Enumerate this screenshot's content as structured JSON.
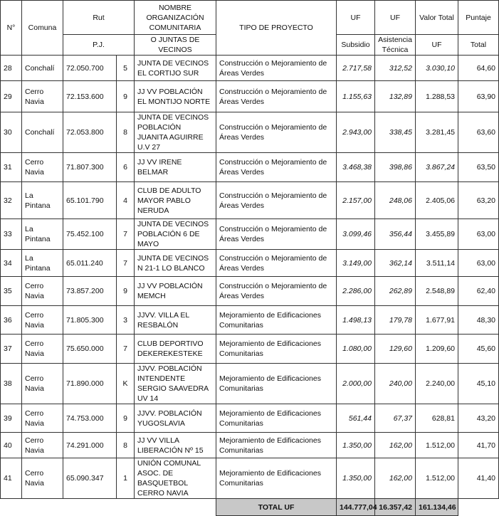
{
  "table": {
    "header": {
      "n": "N°",
      "comuna": "Comuna",
      "rut": "Rut",
      "nombre": "NOMBRE ORGANIZACIÓN COMUNITARIA",
      "tipo": "TIPO DE PROYECTO",
      "uf1": "UF",
      "uf2": "UF",
      "valor": "Valor Total",
      "puntaje": "Puntaje",
      "pj": "P.J.",
      "juntas": "O JUNTAS DE VECINOS",
      "subsidio": "Subsidio",
      "asistencia": "Asistencia Técnica",
      "uf3": "UF",
      "total": "Total"
    },
    "rows": [
      [
        "28",
        "Conchalí",
        "72.050.700",
        "5",
        "JUNTA DE VECINOS EL CORTIJO SUR",
        "Construcción o Mejoramiento de Áreas Verdes",
        "2.717,58",
        "312,52",
        "3.030,10",
        "64,60"
      ],
      [
        "29",
        "Cerro Navia",
        "72.153.600",
        "9",
        "JJ VV POBLACIÓN EL MONTIJO NORTE",
        "Construcción o Mejoramiento de Áreas Verdes",
        "1.155,63",
        "132,89",
        "1.288,53",
        "63,90"
      ],
      [
        "30",
        "Conchalí",
        "72.053.800",
        "8",
        "JUNTA DE VECINOS POBLACIÓN JUANITA AGUIRRE U.V 27",
        "Construcción o Mejoramiento de Áreas Verdes",
        "2.943,00",
        "338,45",
        "3.281,45",
        "63,60"
      ],
      [
        "31",
        "Cerro Navia",
        "71.807.300",
        "6",
        "JJ VV IRENE BELMAR",
        "Construcción o Mejoramiento de Áreas Verdes",
        "3.468,38",
        "398,86",
        "3.867,24",
        "63,50"
      ],
      [
        "32",
        "La Pintana",
        "65.101.790",
        "4",
        "CLUB DE ADULTO MAYOR PABLO NERUDA",
        "Construcción o Mejoramiento de Áreas Verdes",
        "2.157,00",
        "248,06",
        "2.405,06",
        "63,20"
      ],
      [
        "33",
        "La Pintana",
        "75.452.100",
        "7",
        "JUNTA DE VECINOS POBLACIÓN 6 DE MAYO",
        "Construcción o Mejoramiento de Áreas Verdes",
        "3.099,46",
        "356,44",
        "3.455,89",
        "63,00"
      ],
      [
        "34",
        "La Pintana",
        "65.011.240",
        "7",
        "JUNTA DE VECINOS N 21-1 LO BLANCO",
        "Construcción o Mejoramiento de Áreas Verdes",
        "3.149,00",
        "362,14",
        "3.511,14",
        "63,00"
      ],
      [
        "35",
        "Cerro Navia",
        "73.857.200",
        "9",
        "JJ VV POBLACIÓN MEMCH",
        "Construcción o Mejoramiento de Áreas Verdes",
        "2.286,00",
        "262,89",
        "2.548,89",
        "62,40"
      ],
      [
        "36",
        "Cerro Navia",
        "71.805.300",
        "3",
        "JJVV. VILLA EL RESBALÓN",
        "Mejoramiento de Edificaciones Comunitarias",
        "1.498,13",
        "179,78",
        "1.677,91",
        "48,30"
      ],
      [
        "37",
        "Cerro Navia",
        "75.650.000",
        "7",
        "CLUB DEPORTIVO DEKEREKESTEKE",
        "Mejoramiento de Edificaciones Comunitarias",
        "1.080,00",
        "129,60",
        "1.209,60",
        "45,60"
      ],
      [
        "38",
        "Cerro Navia",
        "71.890.000",
        "K",
        "JJVV. POBLACIÓN INTENDENTE SERGIO SAAVEDRA UV 14",
        "Mejoramiento de Edificaciones Comunitarias",
        "2.000,00",
        "240,00",
        "2.240,00",
        "45,10"
      ],
      [
        "39",
        "Cerro Navia",
        "74.753.000",
        "9",
        "JJVV. POBLACIÓN YUGOSLAVIA",
        "Mejoramiento de Edificaciones Comunitarias",
        "561,44",
        "67,37",
        "628,81",
        "43,20"
      ],
      [
        "40",
        "Cerro Navia",
        "74.291.000",
        "8",
        "JJ VV VILLA LIBERACIÓN Nº 15",
        "Mejoramiento de Edificaciones Comunitarias",
        "1.350,00",
        "162,00",
        "1.512,00",
        "41,70"
      ],
      [
        "41",
        "Cerro Navia",
        "65.090.347",
        "1",
        "UNIÓN COMUNAL ASOC. DE BASQUETBOL CERRO NAVIA",
        "Mejoramiento de Edificaciones Comunitarias",
        "1.350,00",
        "162,00",
        "1.512,00",
        "41,40"
      ]
    ],
    "total": {
      "label": "TOTAL UF",
      "subsidio": "144.777,04",
      "asistencia": "16.357,42",
      "valor": "161.134,46"
    }
  }
}
